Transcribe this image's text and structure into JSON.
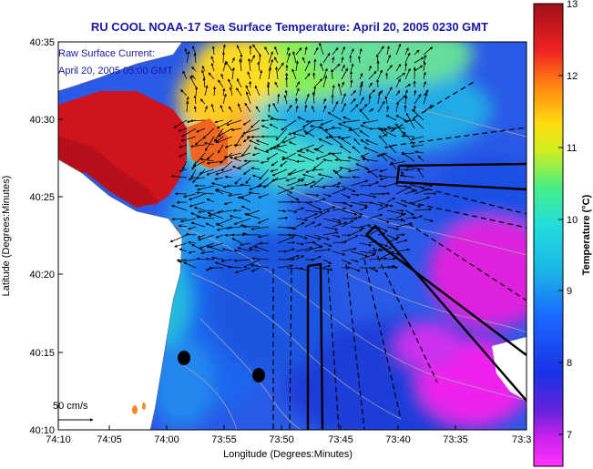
{
  "title": "RU COOL  NOAA-17  Sea Surface Temperature:  April 20, 2005 0230 GMT",
  "legend": {
    "line1": "Raw Surface Current:",
    "line2": "April 20, 2005 05:00 GMT"
  },
  "axes": {
    "xlabel": "Longitude (Degrees:Minutes)",
    "ylabel": "Latitude (Degrees:Minutes)",
    "x_ticks": [
      "74:10",
      "74:05",
      "74:00",
      "73:55",
      "73:50",
      "73:45",
      "73:40",
      "73:35",
      "73:3"
    ],
    "y_ticks": [
      "40:35",
      "40:30",
      "40:25",
      "40:20",
      "40:15",
      "40:10"
    ]
  },
  "colorbar": {
    "label": "Temperature (°C)",
    "ticks": [
      "13",
      "12",
      "11",
      "10",
      "9",
      "8",
      "7"
    ],
    "min": 6.5,
    "max": 13
  },
  "scale_label": "50 cm/s",
  "colors": {
    "land": "#ffffff",
    "title": "#1a1aa6",
    "water_warm": "#c8141e",
    "water_cold": "#1e46dc",
    "magenta": "#e61ee6"
  }
}
